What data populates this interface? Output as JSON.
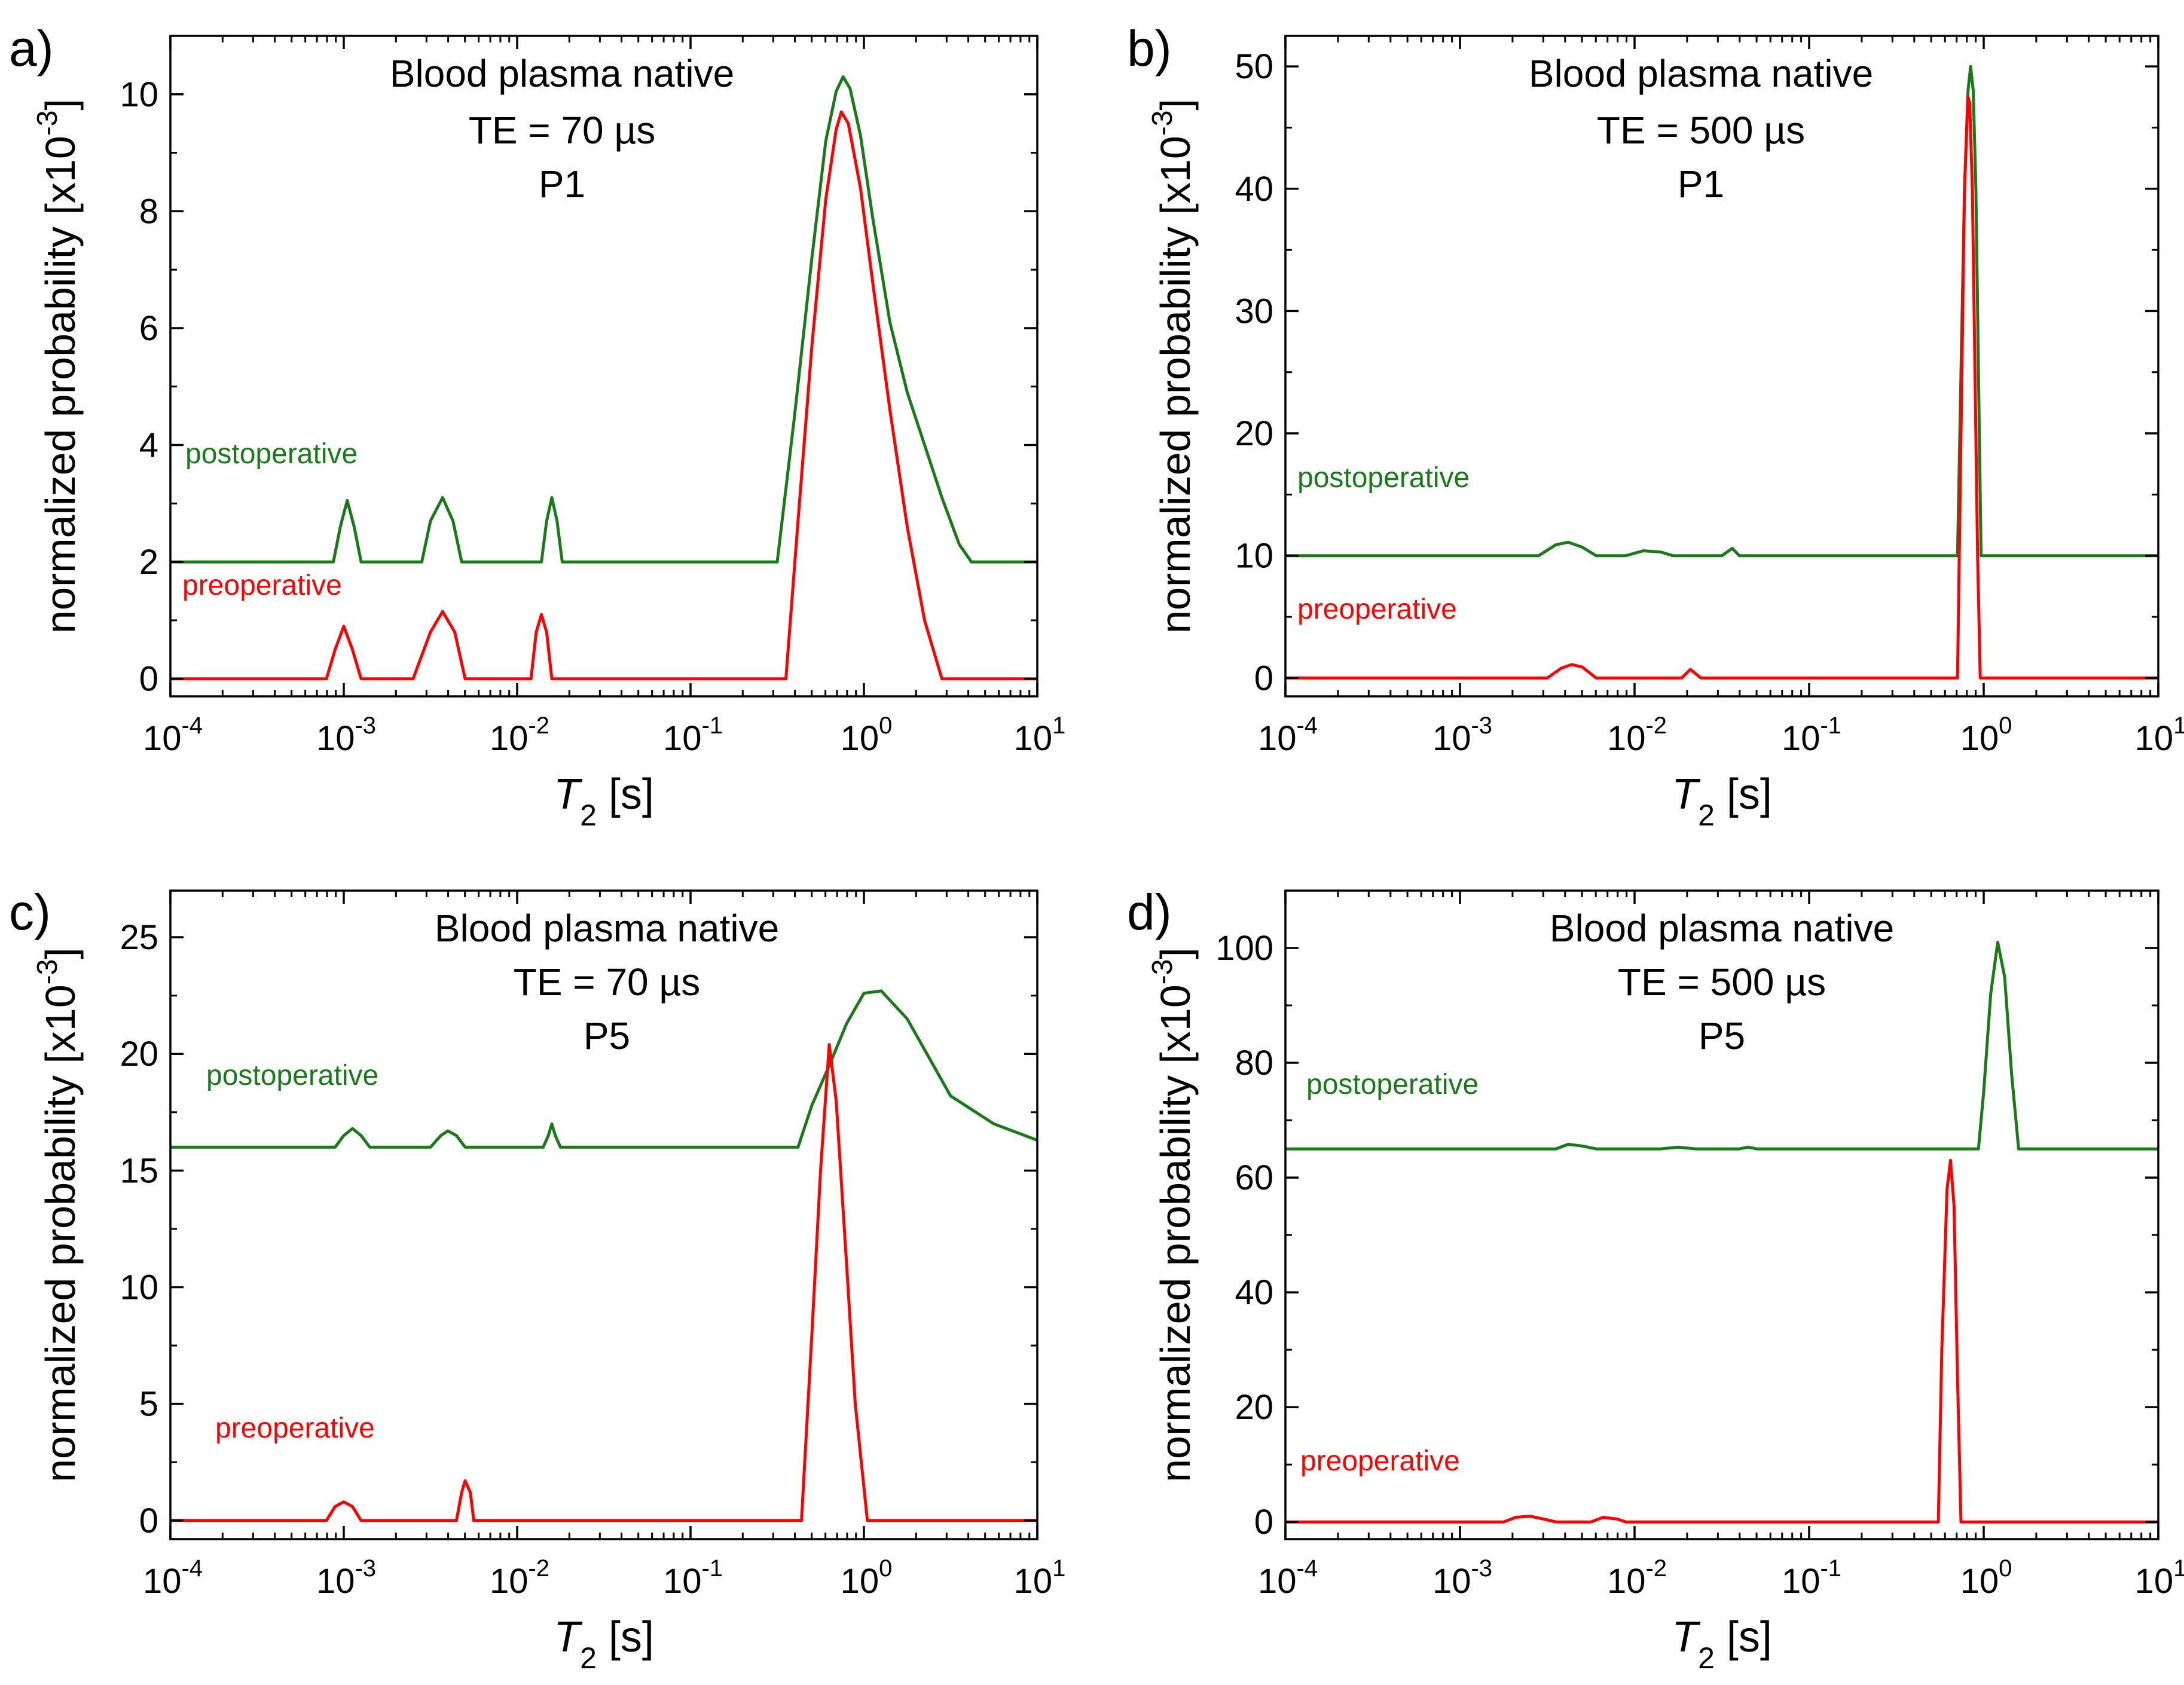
{
  "colors": {
    "post": "#1a7a1a",
    "pre": "#ff0000",
    "axis": "#000000"
  },
  "chart_data": [
    {
      "panel_label": "a)",
      "type": "line",
      "title_lines": [
        "Blood plasma native",
        "TE = 70 µs",
        "P1"
      ],
      "xlabel_var": "T",
      "xlabel_sub": "2",
      "xlabel_unit": " [s]",
      "ylabel": "normalized probability [x10",
      "ylabel_exp": "-3",
      "ylabel_end": "]",
      "xscale": "log",
      "xlim": [
        0.0001,
        10
      ],
      "xticks": [
        {
          "v": 0.0001,
          "base": "10",
          "exp": "-4"
        },
        {
          "v": 0.001,
          "base": "10",
          "exp": "-3"
        },
        {
          "v": 0.01,
          "base": "10",
          "exp": "-2"
        },
        {
          "v": 0.1,
          "base": "10",
          "exp": "-1"
        },
        {
          "v": 1,
          "base": "10",
          "exp": "0"
        },
        {
          "v": 10,
          "base": "10",
          "exp": "1"
        }
      ],
      "ylim": [
        -0.3,
        11
      ],
      "yticks": [
        0,
        2,
        4,
        6,
        8,
        10
      ],
      "series": [
        {
          "name": "postoperative",
          "color": "post",
          "points": [
            [
              -4,
              2
            ],
            [
              -3.06,
              2
            ],
            [
              -3.02,
              2.6
            ],
            [
              -2.98,
              3.05
            ],
            [
              -2.94,
              2.6
            ],
            [
              -2.9,
              2
            ],
            [
              -2.55,
              2
            ],
            [
              -2.5,
              2.7
            ],
            [
              -2.43,
              3.1
            ],
            [
              -2.37,
              2.7
            ],
            [
              -2.32,
              2
            ],
            [
              -1.86,
              2
            ],
            [
              -1.83,
              2.7
            ],
            [
              -1.8,
              3.1
            ],
            [
              -1.77,
              2.7
            ],
            [
              -1.74,
              2
            ],
            [
              -0.5,
              2
            ],
            [
              -0.4,
              4.5
            ],
            [
              -0.3,
              7.2
            ],
            [
              -0.22,
              9.2
            ],
            [
              -0.16,
              10.05
            ],
            [
              -0.12,
              10.3
            ],
            [
              -0.08,
              10.1
            ],
            [
              -0.02,
              9.3
            ],
            [
              0.05,
              7.9
            ],
            [
              0.15,
              6.1
            ],
            [
              0.25,
              4.9
            ],
            [
              0.35,
              4.0
            ],
            [
              0.45,
              3.1
            ],
            [
              0.55,
              2.3
            ],
            [
              0.62,
              2
            ],
            [
              1,
              2
            ]
          ]
        },
        {
          "name": "preoperative",
          "color": "pre",
          "points": [
            [
              -4,
              0
            ],
            [
              -3.1,
              0
            ],
            [
              -3.05,
              0.5
            ],
            [
              -3.0,
              0.9
            ],
            [
              -2.95,
              0.5
            ],
            [
              -2.9,
              0
            ],
            [
              -2.6,
              0
            ],
            [
              -2.5,
              0.8
            ],
            [
              -2.43,
              1.15
            ],
            [
              -2.36,
              0.8
            ],
            [
              -2.3,
              0
            ],
            [
              -1.92,
              0
            ],
            [
              -1.89,
              0.8
            ],
            [
              -1.86,
              1.1
            ],
            [
              -1.83,
              0.8
            ],
            [
              -1.8,
              0
            ],
            [
              -0.45,
              0
            ],
            [
              -0.38,
              2.7
            ],
            [
              -0.3,
              5.7
            ],
            [
              -0.22,
              8.2
            ],
            [
              -0.16,
              9.4
            ],
            [
              -0.13,
              9.7
            ],
            [
              -0.09,
              9.5
            ],
            [
              -0.02,
              8.4
            ],
            [
              0.05,
              6.8
            ],
            [
              0.15,
              4.6
            ],
            [
              0.25,
              2.6
            ],
            [
              0.35,
              1.0
            ],
            [
              0.45,
              0
            ],
            [
              1,
              0
            ]
          ]
        }
      ],
      "legend": [
        {
          "text": "postoperative",
          "color": "post"
        },
        {
          "text": "preoperative",
          "color": "pre"
        }
      ]
    },
    {
      "panel_label": "b)",
      "type": "line",
      "title_lines": [
        "Blood plasma native",
        "TE = 500 µs",
        "P1"
      ],
      "xlabel_var": "T",
      "xlabel_sub": "2",
      "xlabel_unit": " [s]",
      "ylabel": "normalized probability [x10",
      "ylabel_exp": "-3",
      "ylabel_end": "]",
      "xscale": "log",
      "xlim": [
        0.0001,
        10
      ],
      "xticks": [
        {
          "v": 0.0001,
          "base": "10",
          "exp": "-4"
        },
        {
          "v": 0.001,
          "base": "10",
          "exp": "-3"
        },
        {
          "v": 0.01,
          "base": "10",
          "exp": "-2"
        },
        {
          "v": 0.1,
          "base": "10",
          "exp": "-1"
        },
        {
          "v": 1,
          "base": "10",
          "exp": "0"
        },
        {
          "v": 10,
          "base": "10",
          "exp": "1"
        }
      ],
      "ylim": [
        -1.5,
        52.5
      ],
      "yticks": [
        0,
        10,
        20,
        30,
        40,
        50
      ],
      "series": [
        {
          "name": "postoperative",
          "color": "post",
          "points": [
            [
              -4,
              10
            ],
            [
              -2.55,
              10
            ],
            [
              -2.45,
              10.9
            ],
            [
              -2.38,
              11.1
            ],
            [
              -2.3,
              10.7
            ],
            [
              -2.22,
              10
            ],
            [
              -2.05,
              10
            ],
            [
              -1.95,
              10.4
            ],
            [
              -1.85,
              10.3
            ],
            [
              -1.78,
              10
            ],
            [
              -1.5,
              10
            ],
            [
              -1.44,
              10.6
            ],
            [
              -1.4,
              10
            ],
            [
              -0.15,
              10
            ],
            [
              -0.13,
              25
            ],
            [
              -0.11,
              40
            ],
            [
              -0.09,
              48
            ],
            [
              -0.075,
              50
            ],
            [
              -0.06,
              48
            ],
            [
              -0.045,
              40
            ],
            [
              -0.03,
              25
            ],
            [
              -0.015,
              10
            ],
            [
              1,
              10
            ]
          ]
        },
        {
          "name": "preoperative",
          "color": "pre",
          "points": [
            [
              -4,
              0
            ],
            [
              -2.5,
              0
            ],
            [
              -2.42,
              0.8
            ],
            [
              -2.36,
              1.1
            ],
            [
              -2.3,
              0.9
            ],
            [
              -2.22,
              0
            ],
            [
              -1.73,
              0
            ],
            [
              -1.68,
              0.7
            ],
            [
              -1.62,
              0
            ],
            [
              -0.15,
              0
            ],
            [
              -0.13,
              20
            ],
            [
              -0.11,
              40
            ],
            [
              -0.09,
              47.5
            ],
            [
              -0.08,
              47
            ],
            [
              -0.065,
              40
            ],
            [
              -0.05,
              25
            ],
            [
              -0.035,
              10
            ],
            [
              -0.02,
              0
            ],
            [
              1,
              0
            ]
          ]
        }
      ],
      "legend": [
        {
          "text": "postoperative",
          "color": "post"
        },
        {
          "text": "preoperative",
          "color": "pre"
        }
      ]
    },
    {
      "panel_label": "c)",
      "type": "line",
      "title_lines": [
        "Blood plasma native",
        "TE = 70 µs",
        "P5"
      ],
      "xlabel_var": "T",
      "xlabel_sub": "2",
      "xlabel_unit": " [s]",
      "ylabel": "normalized probability [x10",
      "ylabel_exp": "-3",
      "ylabel_end": "]",
      "xscale": "log",
      "xlim": [
        0.0001,
        10
      ],
      "xticks": [
        {
          "v": 0.0001,
          "base": "10",
          "exp": "-4"
        },
        {
          "v": 0.001,
          "base": "10",
          "exp": "-3"
        },
        {
          "v": 0.01,
          "base": "10",
          "exp": "-2"
        },
        {
          "v": 0.1,
          "base": "10",
          "exp": "-1"
        },
        {
          "v": 1,
          "base": "10",
          "exp": "0"
        },
        {
          "v": 10,
          "base": "10",
          "exp": "1"
        }
      ],
      "ylim": [
        -0.8,
        27
      ],
      "yticks": [
        0,
        5,
        10,
        15,
        20,
        25
      ],
      "series": [
        {
          "name": "postoperative",
          "color": "post",
          "points": [
            [
              -4,
              16
            ],
            [
              -3.05,
              16
            ],
            [
              -3.0,
              16.5
            ],
            [
              -2.95,
              16.8
            ],
            [
              -2.9,
              16.5
            ],
            [
              -2.85,
              16
            ],
            [
              -2.5,
              16
            ],
            [
              -2.44,
              16.5
            ],
            [
              -2.4,
              16.7
            ],
            [
              -2.35,
              16.5
            ],
            [
              -2.3,
              16
            ],
            [
              -1.85,
              16
            ],
            [
              -1.82,
              16.5
            ],
            [
              -1.8,
              17
            ],
            [
              -1.78,
              16.5
            ],
            [
              -1.75,
              16
            ],
            [
              -0.38,
              16
            ],
            [
              -0.3,
              17.8
            ],
            [
              -0.2,
              19.5
            ],
            [
              -0.1,
              21.3
            ],
            [
              0,
              22.6
            ],
            [
              0.1,
              22.7
            ],
            [
              0.25,
              21.5
            ],
            [
              0.5,
              18.2
            ],
            [
              0.75,
              17.0
            ],
            [
              1,
              16.3
            ]
          ]
        },
        {
          "name": "preoperative",
          "color": "pre",
          "points": [
            [
              -4,
              0
            ],
            [
              -3.1,
              0
            ],
            [
              -3.05,
              0.6
            ],
            [
              -3.0,
              0.8
            ],
            [
              -2.95,
              0.6
            ],
            [
              -2.9,
              0
            ],
            [
              -2.35,
              0
            ],
            [
              -2.32,
              1.2
            ],
            [
              -2.3,
              1.7
            ],
            [
              -2.27,
              1.2
            ],
            [
              -2.25,
              0
            ],
            [
              -0.36,
              0
            ],
            [
              -0.3,
              8
            ],
            [
              -0.25,
              15
            ],
            [
              -0.2,
              20.4
            ],
            [
              -0.16,
              18
            ],
            [
              -0.1,
              11
            ],
            [
              -0.05,
              5
            ],
            [
              0.02,
              0
            ],
            [
              1,
              0
            ]
          ]
        }
      ],
      "legend": [
        {
          "text": "postoperative",
          "color": "post"
        },
        {
          "text": "preoperative",
          "color": "pre"
        }
      ]
    },
    {
      "panel_label": "d)",
      "type": "line",
      "title_lines": [
        "Blood plasma native",
        "TE = 500 µs",
        "P5"
      ],
      "xlabel_var": "T",
      "xlabel_sub": "2",
      "xlabel_unit": " [s]",
      "ylabel": "normalized probability [x10",
      "ylabel_exp": "-3",
      "ylabel_end": "]",
      "xscale": "log",
      "xlim": [
        0.0001,
        10
      ],
      "xticks": [
        {
          "v": 0.0001,
          "base": "10",
          "exp": "-4"
        },
        {
          "v": 0.001,
          "base": "10",
          "exp": "-3"
        },
        {
          "v": 0.01,
          "base": "10",
          "exp": "-2"
        },
        {
          "v": 0.1,
          "base": "10",
          "exp": "-1"
        },
        {
          "v": 1,
          "base": "10",
          "exp": "0"
        },
        {
          "v": 10,
          "base": "10",
          "exp": "1"
        }
      ],
      "ylim": [
        -3,
        110
      ],
      "yticks": [
        0,
        20,
        40,
        60,
        80,
        100
      ],
      "series": [
        {
          "name": "postoperative",
          "color": "post",
          "points": [
            [
              -4,
              65
            ],
            [
              -2.45,
              65
            ],
            [
              -2.38,
              65.8
            ],
            [
              -2.3,
              65.5
            ],
            [
              -2.22,
              65
            ],
            [
              -1.85,
              65
            ],
            [
              -1.75,
              65.3
            ],
            [
              -1.65,
              65
            ],
            [
              -1.4,
              65
            ],
            [
              -1.35,
              65.3
            ],
            [
              -1.3,
              65
            ],
            [
              -0.03,
              65
            ],
            [
              0,
              75
            ],
            [
              0.04,
              92
            ],
            [
              0.08,
              101
            ],
            [
              0.12,
              95
            ],
            [
              0.16,
              78
            ],
            [
              0.2,
              65
            ],
            [
              1,
              65
            ]
          ]
        },
        {
          "name": "preoperative",
          "color": "pre",
          "points": [
            [
              -4,
              0
            ],
            [
              -2.75,
              0
            ],
            [
              -2.68,
              0.8
            ],
            [
              -2.6,
              1
            ],
            [
              -2.52,
              0.5
            ],
            [
              -2.45,
              0
            ],
            [
              -2.25,
              0
            ],
            [
              -2.18,
              0.8
            ],
            [
              -2.1,
              0.5
            ],
            [
              -2.05,
              0
            ],
            [
              -0.26,
              0
            ],
            [
              -0.24,
              30
            ],
            [
              -0.21,
              58
            ],
            [
              -0.19,
              63
            ],
            [
              -0.17,
              55
            ],
            [
              -0.15,
              25
            ],
            [
              -0.13,
              0
            ],
            [
              1,
              0
            ]
          ]
        }
      ],
      "legend": [
        {
          "text": "postoperative",
          "color": "post"
        },
        {
          "text": "preoperative",
          "color": "pre"
        }
      ]
    }
  ]
}
